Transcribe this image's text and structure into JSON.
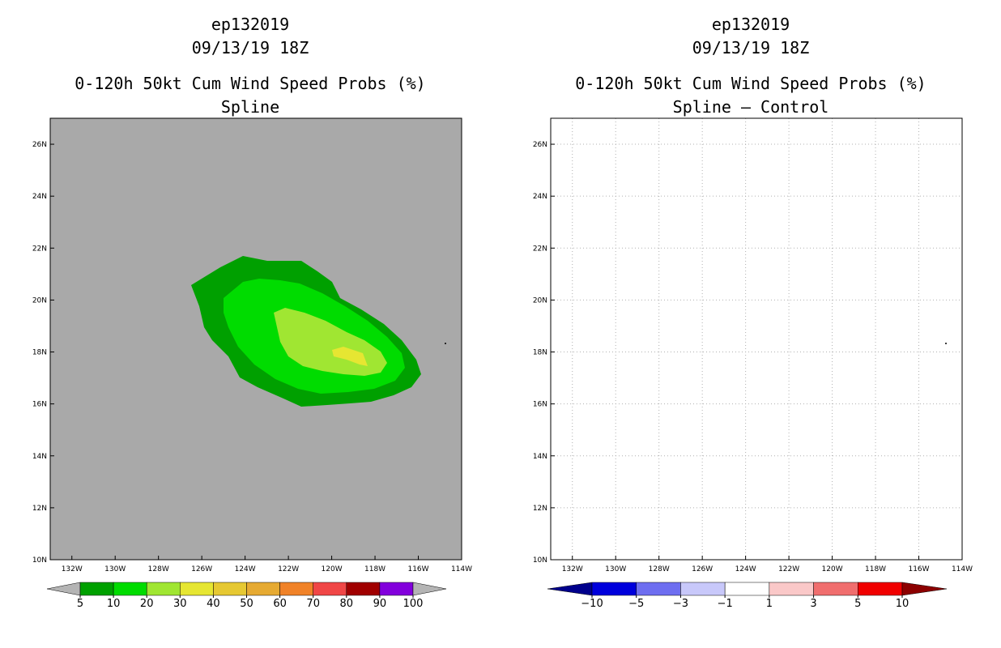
{
  "left_panel": {
    "storm_id": "ep132019",
    "datetime": "09/13/19 18Z",
    "product": "0-120h 50kt Cum Wind Speed Probs (%)",
    "variant": "Spline",
    "colorbar_labels": [
      "5",
      "10",
      "20",
      "30",
      "40",
      "50",
      "60",
      "70",
      "80",
      "90",
      "100"
    ],
    "colorbar_colors": [
      "#00a000",
      "#00dc00",
      "#a0e632",
      "#e6e632",
      "#e6c832",
      "#e6aa32",
      "#f08228",
      "#f04646",
      "#a00000",
      "#8200dc"
    ],
    "under_color": "#b4b4b4",
    "over_color": "#b4b4b4"
  },
  "right_panel": {
    "storm_id": "ep132019",
    "datetime": "09/13/19 18Z",
    "product": "0-120h 50kt Cum Wind Speed Probs (%)",
    "variant": "Spline – Control",
    "colorbar_labels": [
      "−10",
      "−5",
      "−3",
      "−1",
      "1",
      "3",
      "5",
      "10"
    ],
    "colorbar_colors": [
      "#0000dc",
      "#6e6ef0",
      "#c8c8fa",
      "#ffffff",
      "#fac8c8",
      "#f06e6e",
      "#f00000"
    ],
    "under_color": "#00008c",
    "over_color": "#8c0000"
  },
  "map": {
    "background_color": "#a9a9a9",
    "lat_labels": [
      "26N",
      "24N",
      "22N",
      "20N",
      "18N",
      "16N",
      "14N",
      "12N",
      "10N"
    ],
    "lon_labels": [
      "132W",
      "130W",
      "128W",
      "126W",
      "124W",
      "122W",
      "120W",
      "118W",
      "116W",
      "114W"
    ],
    "lat_values": [
      26,
      24,
      22,
      20,
      18,
      16,
      14,
      12,
      10
    ],
    "lon_values": [
      -132,
      -130,
      -128,
      -126,
      -124,
      -122,
      -120,
      -118,
      -116,
      -114
    ],
    "lon_range": [
      -133,
      -114
    ],
    "lat_range": [
      10,
      27
    ]
  },
  "probability_regions": [
    {
      "level": "5-10%",
      "color": "#00a000"
    },
    {
      "level": "10-20%",
      "color": "#00dc00"
    },
    {
      "level": "20-30%",
      "color": "#a0e632"
    },
    {
      "level": "30-40%",
      "color": "#e6e632"
    }
  ]
}
